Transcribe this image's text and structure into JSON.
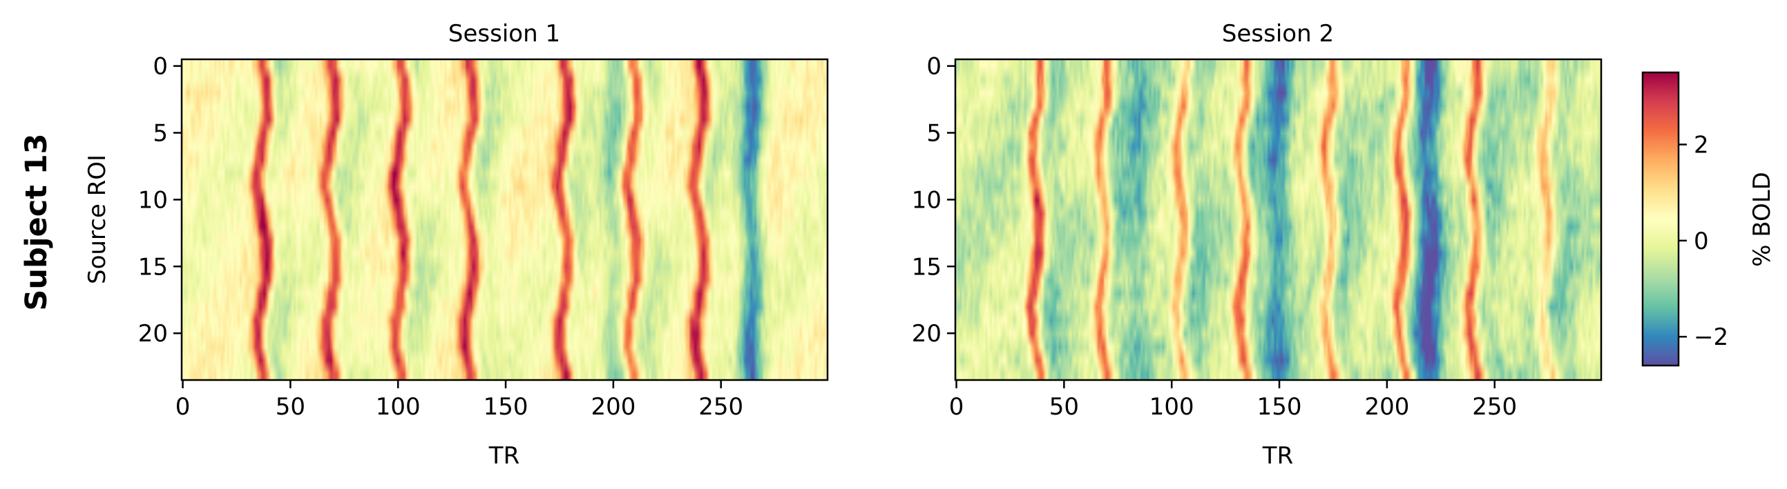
{
  "figure": {
    "row_label": "Subject 13"
  },
  "chart_data": [
    {
      "type": "heatmap",
      "title": "Session 1",
      "xlabel": "TR",
      "ylabel": "Source ROI",
      "n_cols": 300,
      "n_rows": 24,
      "xlim": [
        0,
        299
      ],
      "ylim": [
        23.5,
        -0.5
      ],
      "xticks": [
        0,
        50,
        100,
        150,
        200,
        250
      ],
      "yticks": [
        0,
        5,
        10,
        15,
        20
      ],
      "peaks": [
        {
          "tr": 37,
          "amp": 3.0
        },
        {
          "tr": 69,
          "amp": 2.6
        },
        {
          "tr": 101,
          "amp": 2.8
        },
        {
          "tr": 133,
          "amp": 2.6
        },
        {
          "tr": 177,
          "amp": 2.6
        },
        {
          "tr": 209,
          "amp": 2.4
        },
        {
          "tr": 240,
          "amp": 2.8
        }
      ],
      "troughs": [
        {
          "tr": 200,
          "amp": -1.2
        },
        {
          "tr": 264,
          "amp": -2.3
        }
      ],
      "baseline": 0.4,
      "noise": 0.5
    },
    {
      "type": "heatmap",
      "title": "Session 2",
      "xlabel": "TR",
      "ylabel": "",
      "n_cols": 300,
      "n_rows": 24,
      "xlim": [
        0,
        299
      ],
      "ylim": [
        23.5,
        -0.5
      ],
      "xticks": [
        0,
        50,
        100,
        150,
        200,
        250
      ],
      "yticks": [
        0,
        5,
        10,
        15,
        20
      ],
      "peaks": [
        {
          "tr": 37,
          "amp": 3.2
        },
        {
          "tr": 68,
          "amp": 2.4
        },
        {
          "tr": 104,
          "amp": 2.2
        },
        {
          "tr": 133,
          "amp": 2.6
        },
        {
          "tr": 173,
          "amp": 2.2
        },
        {
          "tr": 207,
          "amp": 2.8
        },
        {
          "tr": 240,
          "amp": 2.8
        },
        {
          "tr": 274,
          "amp": 1.8
        }
      ],
      "troughs": [
        {
          "tr": 150,
          "amp": -1.4
        },
        {
          "tr": 220,
          "amp": -1.8
        },
        {
          "tr": 85,
          "amp": -0.8
        }
      ],
      "baseline": -0.3,
      "noise": 0.7
    }
  ],
  "colorbar": {
    "label": "% BOLD",
    "range": [
      -2.6,
      3.5
    ],
    "ticks": [
      -2,
      0,
      2
    ],
    "tick_labels": [
      "−2",
      "0",
      "2"
    ],
    "colormap": "Spectral_r"
  }
}
